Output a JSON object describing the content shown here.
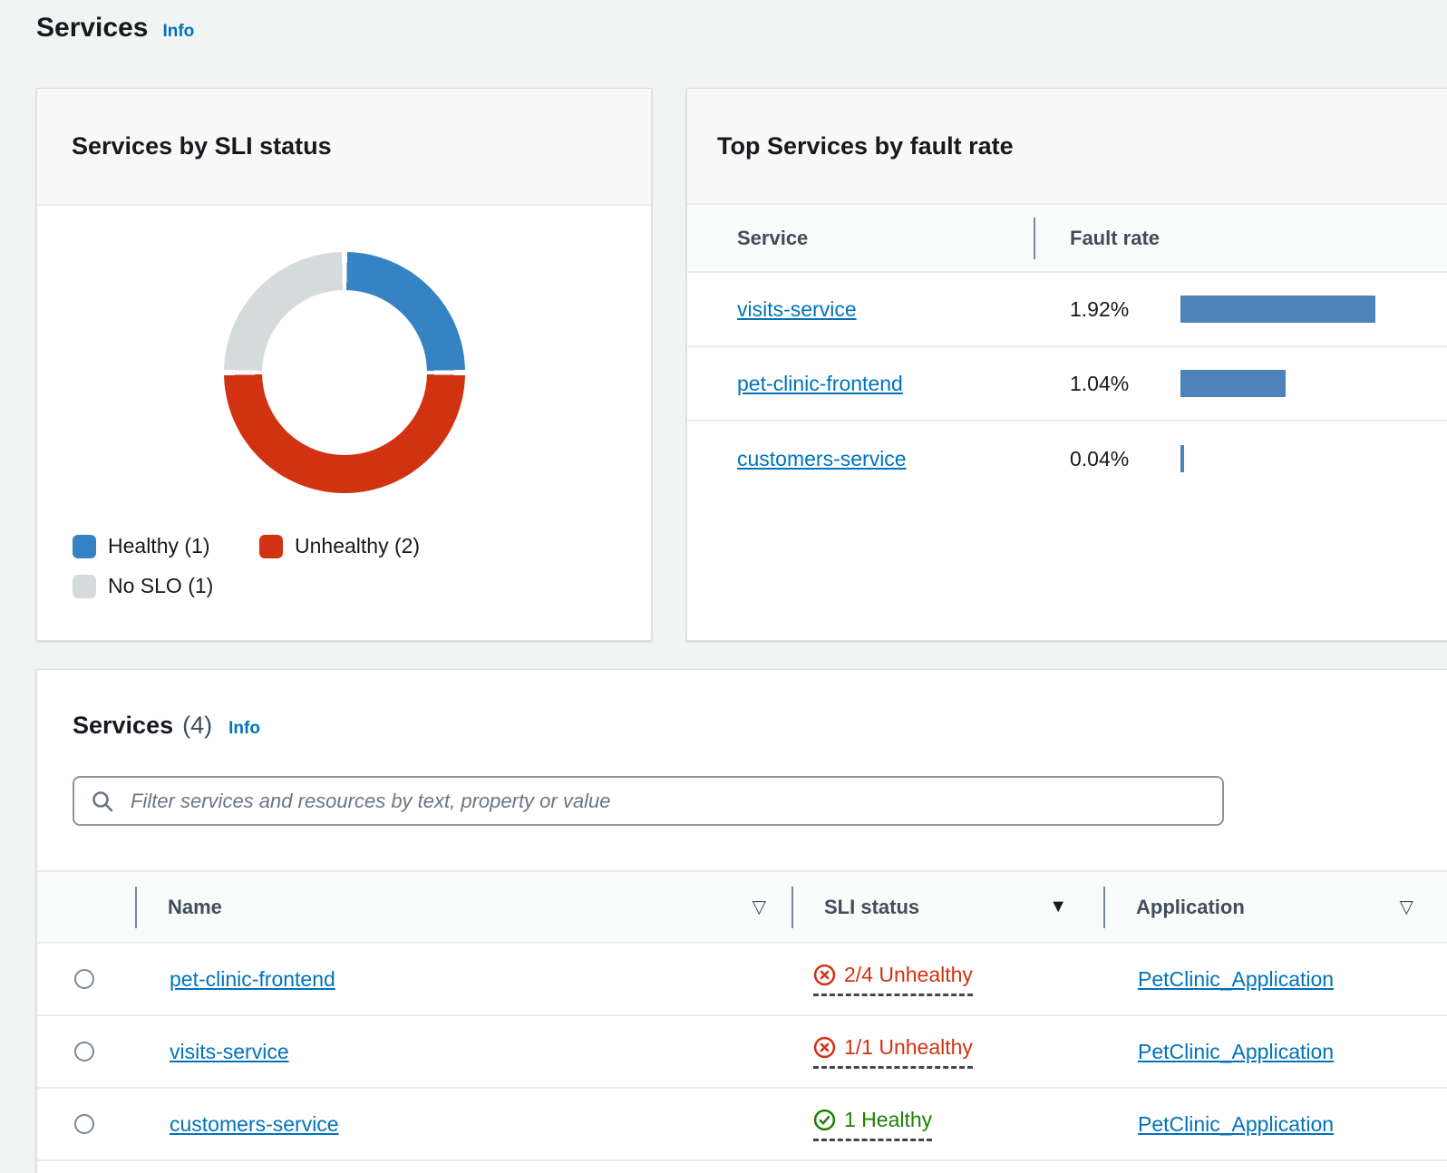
{
  "page": {
    "title": "Services",
    "info_label": "Info",
    "background": "#f2f3f3"
  },
  "sli_card": {
    "title": "Services by SLI status",
    "legend": [
      {
        "label": "Healthy (1)",
        "color": "#3583c2"
      },
      {
        "label": "Unhealthy (2)",
        "color": "#d13212"
      },
      {
        "label": "No SLO (1)",
        "color": "#d5dbdb"
      }
    ]
  },
  "fault_card": {
    "title": "Top Services by fault rate",
    "columns": {
      "service": "Service",
      "fault_rate": "Fault rate"
    },
    "rows": [
      {
        "service": "visits-service",
        "rate": "1.92%"
      },
      {
        "service": "pet-clinic-frontend",
        "rate": "1.04%"
      },
      {
        "service": "customers-service",
        "rate": "0.04%"
      }
    ]
  },
  "services_card": {
    "title": "Services",
    "count": "(4)",
    "info_label": "Info",
    "filter_placeholder": "Filter services and resources by text, property or value",
    "columns": {
      "name": "Name",
      "sli_status": "SLI status",
      "application": "Application"
    },
    "rows": [
      {
        "name": "pet-clinic-frontend",
        "status": "2/4 Unhealthy",
        "status_type": "unhealthy",
        "application": "PetClinic_Application"
      },
      {
        "name": "visits-service",
        "status": "1/1 Unhealthy",
        "status_type": "unhealthy",
        "application": "PetClinic_Application"
      },
      {
        "name": "customers-service",
        "status": "1 Healthy",
        "status_type": "healthy",
        "application": "PetClinic_Application"
      }
    ]
  },
  "colors": {
    "link_blue": "#0073bb",
    "unhealthy_red": "#d13212",
    "healthy_green": "#1d8102",
    "bar_blue": "#4e82bb",
    "page_background": "#f2f3f3"
  },
  "chart_data": [
    {
      "type": "pie",
      "donut": true,
      "title": "Services by SLI status",
      "labels": [
        "Healthy",
        "Unhealthy",
        "No SLO"
      ],
      "values": [
        1,
        2,
        1
      ],
      "colors": [
        "#3583c2",
        "#d13212",
        "#d5dbdb"
      ],
      "legend_position": "bottom"
    },
    {
      "type": "bar",
      "orientation": "horizontal",
      "title": "Top Services by fault rate",
      "categories": [
        "visits-service",
        "pet-clinic-frontend",
        "customers-service"
      ],
      "values": [
        1.92,
        1.04,
        0.04
      ],
      "unit": "%",
      "bar_color": "#4e82bb",
      "value_labels": [
        "1.92%",
        "1.04%",
        "0.04%"
      ]
    }
  ]
}
